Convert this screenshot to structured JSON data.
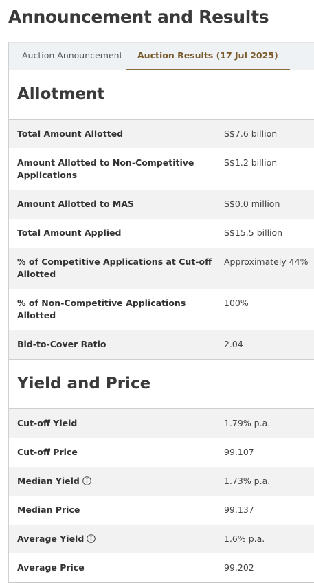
{
  "header": {
    "title": "Announcement and Results"
  },
  "tabs": [
    {
      "label": "Auction Announcement",
      "active": false
    },
    {
      "label": "Auction Results (17 Jul 2025)",
      "active": true
    }
  ],
  "sections": [
    {
      "title": "Allotment",
      "rows": [
        {
          "label": "Total Amount Allotted",
          "value": "S$7.6 billion"
        },
        {
          "label": "Amount Allotted to Non-Competitive Applications",
          "value": "S$1.2 billion"
        },
        {
          "label": "Amount Allotted to MAS",
          "value": "S$0.0 million"
        },
        {
          "label": "Total Amount Applied",
          "value": "S$15.5 billion"
        },
        {
          "label": "% of Competitive Applications at Cut-off Allotted",
          "value": "Approximately 44%"
        },
        {
          "label": "% of Non-Competitive Applications Allotted",
          "value": "100%"
        },
        {
          "label": "Bid-to-Cover Ratio",
          "value": "2.04"
        }
      ]
    },
    {
      "title": "Yield and Price",
      "rows": [
        {
          "label": "Cut-off Yield",
          "value": "1.79% p.a."
        },
        {
          "label": "Cut-off Price",
          "value": "99.107"
        },
        {
          "label": "Median Yield",
          "value": "1.73% p.a.",
          "info_icon": true
        },
        {
          "label": "Median Price",
          "value": "99.137"
        },
        {
          "label": "Average Yield",
          "value": "1.6% p.a.",
          "info_icon": true
        },
        {
          "label": "Average Price",
          "value": "99.202"
        }
      ]
    }
  ]
}
